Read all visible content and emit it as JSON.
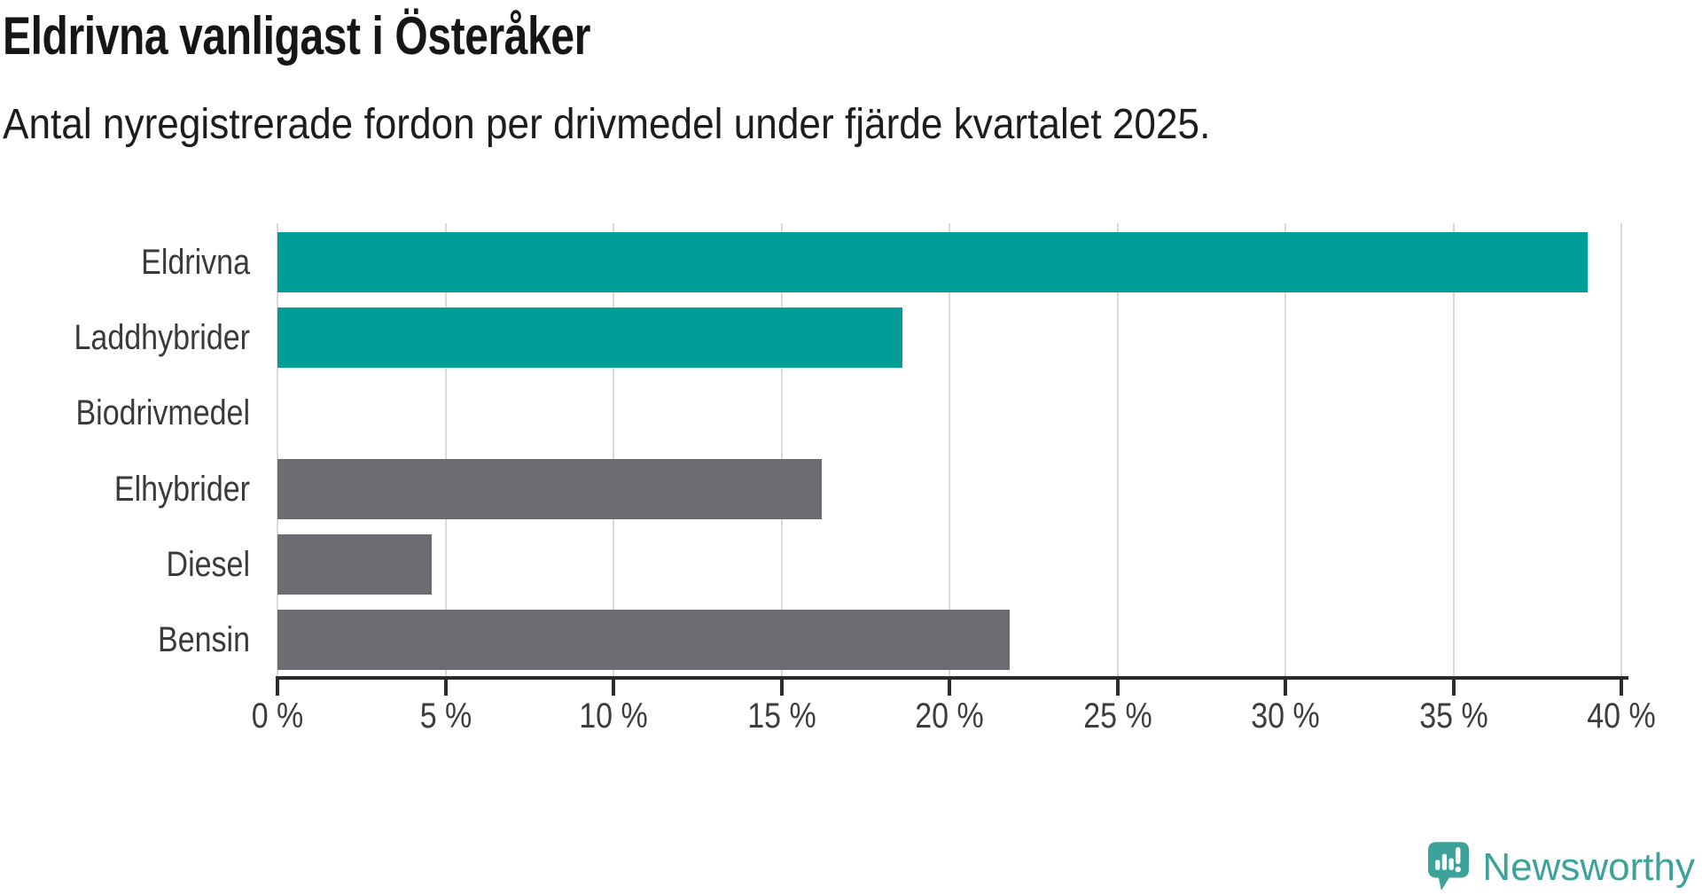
{
  "chart_data": {
    "type": "bar",
    "orientation": "horizontal",
    "title": "Eldrivna vanligast i Österåker",
    "subtitle": "Antal nyregistrerade fordon per drivmedel under fjärde kvartalet 2025.",
    "categories": [
      "Eldrivna",
      "Laddhybrider",
      "Biodrivmedel",
      "Elhybrider",
      "Diesel",
      "Bensin"
    ],
    "values": [
      39.0,
      18.6,
      0,
      16.2,
      4.6,
      21.8
    ],
    "unit": "%",
    "bar_colors": [
      "#009e97",
      "#009e97",
      "#6c6c72",
      "#6c6c72",
      "#6c6c72",
      "#6c6c72"
    ],
    "highlight_color": "#009e97",
    "default_color": "#6c6c72",
    "xlim": [
      0,
      40
    ],
    "x_ticks": [
      0,
      5,
      10,
      15,
      20,
      25,
      30,
      35,
      40
    ],
    "x_tick_labels": [
      "0 %",
      "5 %",
      "10 %",
      "15 %",
      "20 %",
      "25 %",
      "30 %",
      "35 %",
      "40 %"
    ],
    "grid": "vertical",
    "legend": "none",
    "axis_color": "#2b2b2b",
    "gridline_color": "#dadada",
    "label_color": "#3a3a3a"
  },
  "branding": {
    "logo_text": "Newsworthy",
    "logo_color": "#3ca29a",
    "logo_icon": "newsworthy-speech-bubble-chart-icon"
  }
}
